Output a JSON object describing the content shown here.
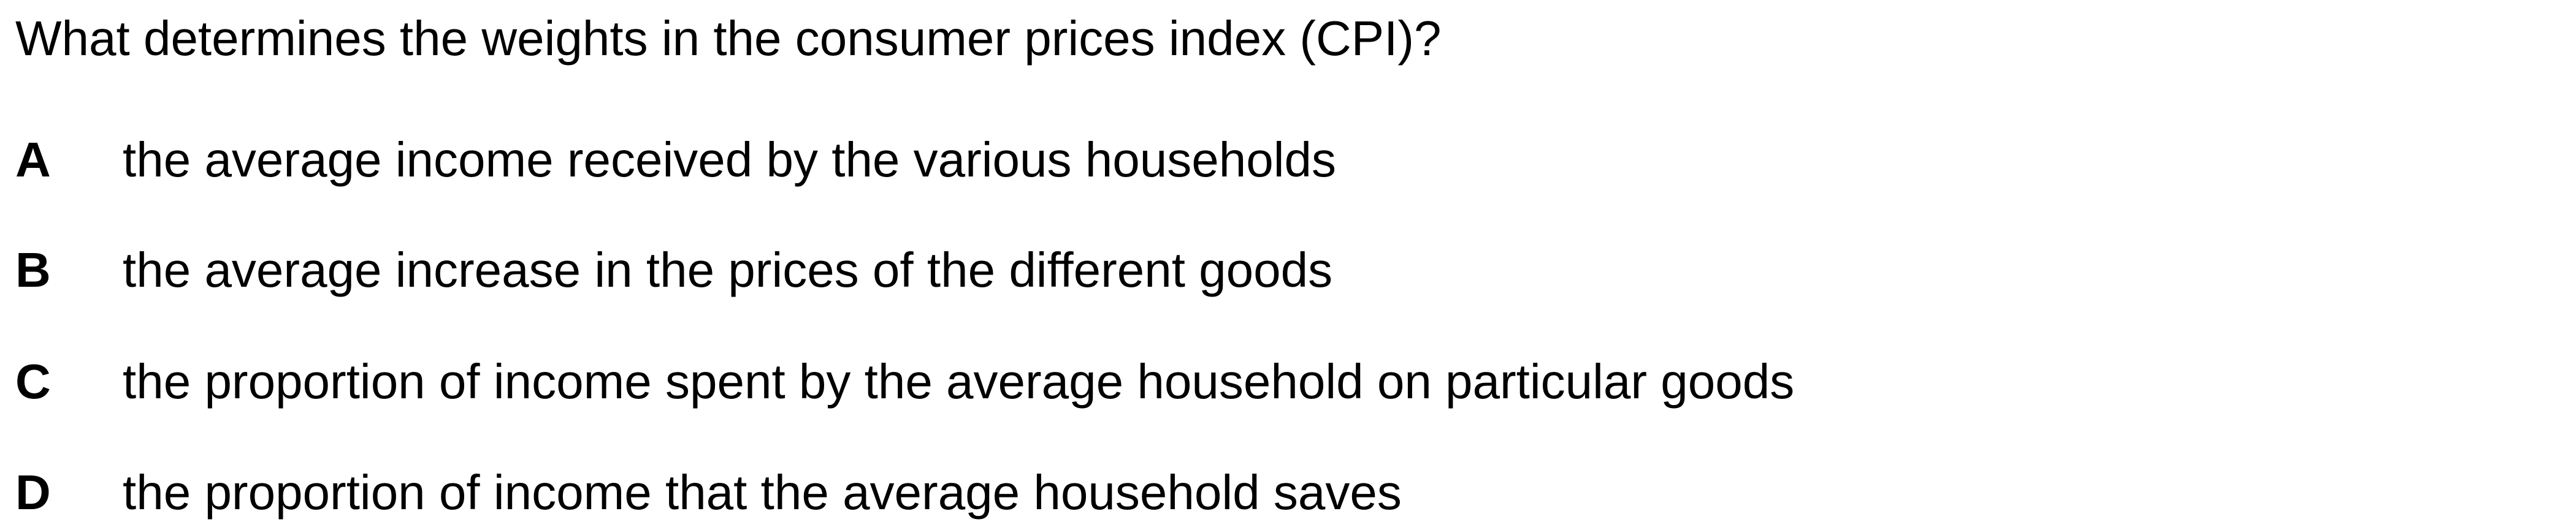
{
  "question": {
    "text": "What determines the weights in the consumer prices index (CPI)?"
  },
  "options": [
    {
      "letter": "A",
      "text": "the average income received by the various households"
    },
    {
      "letter": "B",
      "text": "the average increase in the prices of the different goods"
    },
    {
      "letter": "C",
      "text": "the proportion of income spent by the average household on particular goods"
    },
    {
      "letter": "D",
      "text": "the proportion of income that the average household saves"
    }
  ]
}
